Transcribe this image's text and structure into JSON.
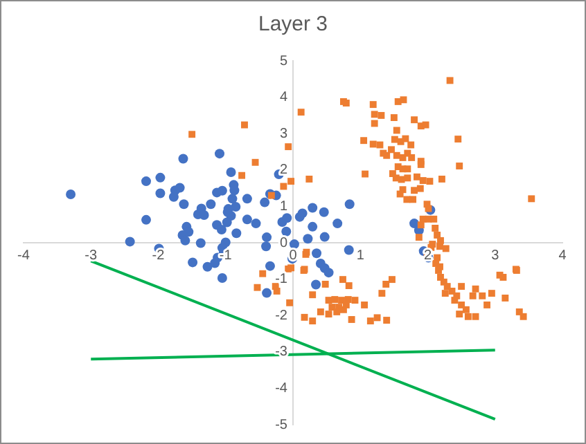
{
  "chart_data": {
    "type": "scatter",
    "title": "Layer 3",
    "xlim": [
      -4,
      4
    ],
    "xticks": [
      -4,
      -3,
      -2,
      -1,
      0,
      1,
      2,
      3,
      4
    ],
    "ylim": [
      -5,
      5
    ],
    "yticks": [
      -5,
      -4,
      -3,
      -2,
      -1,
      0,
      1,
      2,
      3,
      4,
      5
    ],
    "series": [
      {
        "type": "scatter",
        "marker": "circle",
        "color": "#4472c4",
        "x": [
          -3.3,
          -2.18,
          -1.97,
          -1.97,
          -2.18,
          -2.42,
          -1.99,
          -1.63,
          -1.75,
          -1.68,
          -1.77,
          -1.62,
          -1.41,
          -1.36,
          -1.32,
          -1.22,
          -1.58,
          -1.55,
          -1.64,
          -1.6,
          -1.37,
          -1.09,
          -0.92,
          -1.13,
          -1.05,
          -0.88,
          -0.87,
          -0.9,
          -0.85,
          -0.97,
          -0.92,
          -0.98,
          -0.96,
          -1.13,
          -1.06,
          -0.84,
          -1.0,
          -1.05,
          -1.12,
          -1.16,
          -1.03,
          -1.49,
          -1.27,
          -0.68,
          -0.55,
          -0.68,
          -0.42,
          -0.34,
          -0.21,
          -0.25,
          -0.16,
          -0.09,
          -0.1,
          -0.39,
          -0.4,
          -0.34,
          0.02,
          -0.01,
          0.1,
          0.14,
          -1.05,
          -0.39,
          0.29,
          0.46,
          0.29,
          0.22,
          0.47,
          0.66,
          0.84,
          0.83,
          0.35,
          0.41,
          0.47,
          0.53,
          0.34,
          1.8,
          1.87,
          2.04,
          1.94,
          2.01
        ],
        "values": [
          1.33,
          1.69,
          1.79,
          1.36,
          0.63,
          0.03,
          -0.16,
          2.31,
          1.44,
          1.51,
          1.26,
          1.06,
          0.78,
          0.94,
          0.76,
          1.06,
          0.44,
          0.3,
          0.21,
          0.06,
          -0.01,
          2.45,
          1.94,
          1.38,
          1.43,
          1.59,
          1.44,
          1.21,
          0.99,
          0.84,
          0.74,
          0.56,
          0.93,
          0.49,
          0.36,
          0.26,
          0.01,
          -0.14,
          -0.41,
          -0.56,
          -0.29,
          -0.54,
          -0.66,
          1.21,
          0.53,
          0.64,
          1.11,
          1.34,
          1.88,
          1.3,
          0.57,
          0.68,
          0.31,
          0.15,
          -0.1,
          -0.64,
          -0.04,
          -0.44,
          0.71,
          0.81,
          -0.97,
          -1.38,
          0.96,
          0.84,
          0.44,
          0.11,
          0.16,
          0.53,
          1.06,
          -0.2,
          -0.29,
          -0.57,
          -0.7,
          -0.82,
          -1.15,
          0.53,
          0.34,
          0.9,
          -0.23,
          -0.41
        ]
      },
      {
        "type": "scatter",
        "marker": "square",
        "color": "#ed7d31",
        "x": [
          -1.5,
          -0.72,
          -0.56,
          -0.76,
          -0.32,
          -0.14,
          -0.03,
          -0.07,
          0.12,
          0.24,
          0.75,
          0.79,
          1.05,
          1.07,
          1.19,
          1.21,
          1.31,
          1.21,
          1.5,
          1.56,
          1.64,
          1.8,
          1.9,
          1.97,
          2.33,
          2.45,
          2.47,
          3.54,
          1.19,
          1.29,
          1.34,
          1.39,
          1.46,
          1.54,
          1.51,
          1.6,
          1.67,
          1.75,
          1.7,
          1.54,
          1.63,
          1.76,
          1.9,
          1.9,
          1.56,
          1.63,
          1.7,
          1.48,
          1.53,
          1.61,
          1.7,
          1.84,
          1.93,
          1.89,
          1.8,
          1.63,
          1.59,
          1.69,
          1.78,
          2.03,
          2.21,
          1.99,
          2.01,
          1.93,
          2.01,
          2.09,
          1.9,
          2.11,
          2.14,
          1.87,
          2.07,
          2.18,
          2.27,
          2.14,
          2.18,
          0.2,
          0.17,
          -0.03,
          3.31,
          3.07,
          0.19,
          -0.07,
          0.16,
          -0.45,
          -0.53,
          -0.26,
          -0.24,
          -0.05,
          0.29,
          0.48,
          0.74,
          0.83,
          0.53,
          0.62,
          0.72,
          0.82,
          0.92,
          1.06,
          0.58,
          0.68,
          0.79,
          0.41,
          0.53,
          0.65,
          0.75,
          0.17,
          0.29,
          0.87,
          1.15,
          1.25,
          1.39,
          1.32,
          1.38,
          1.47,
          2.19,
          2.05,
          1.99,
          2.12,
          2.16,
          2.19,
          2.24,
          2.29,
          2.26,
          2.36,
          2.43,
          2.5,
          2.4,
          2.5,
          2.57,
          2.47,
          2.6,
          2.71,
          2.71,
          2.67,
          2.81,
          2.88,
          2.95,
          3.12,
          3.32,
          3.15,
          3.36,
          3.42
        ],
        "values": [
          2.98,
          3.24,
          2.21,
          1.85,
          1.3,
          1.55,
          1.69,
          2.64,
          3.59,
          1.75,
          3.88,
          3.84,
          2.81,
          1.89,
          3.8,
          3.53,
          3.5,
          3.28,
          3.44,
          3.88,
          3.93,
          3.38,
          3.21,
          3.24,
          4.46,
          2.85,
          2.11,
          1.21,
          2.71,
          2.69,
          2.46,
          2.4,
          2.56,
          3.09,
          2.84,
          2.78,
          2.86,
          2.69,
          2.46,
          2.4,
          2.34,
          2.34,
          2.24,
          2.15,
          2.09,
          2.03,
          2.03,
          1.9,
          1.78,
          1.74,
          1.78,
          1.81,
          1.71,
          1.49,
          1.44,
          1.46,
          1.34,
          1.19,
          1.19,
          1.69,
          1.75,
          1.06,
          0.94,
          0.65,
          0.65,
          0.65,
          0.49,
          0.4,
          0.21,
          0.15,
          -0.04,
          -0.1,
          -0.16,
          -0.41,
          -0.66,
          -0.26,
          -0.73,
          -0.69,
          -0.73,
          -0.89,
          -0.32,
          -0.72,
          -0.76,
          -0.85,
          -1.23,
          -1.2,
          -1.33,
          -1.65,
          -1.43,
          -1.14,
          -1.01,
          -1.18,
          -1.58,
          -1.56,
          -1.58,
          -1.56,
          -1.58,
          -1.71,
          -1.77,
          -1.77,
          -1.71,
          -1.9,
          -1.96,
          -1.9,
          -1.84,
          -2.05,
          -2.15,
          -2.11,
          -2.15,
          -2.06,
          -2.13,
          -1.39,
          -1.14,
          -1.01,
          0.06,
          -0.13,
          -0.38,
          -0.57,
          -0.76,
          -0.95,
          -1.08,
          -1.2,
          -1.39,
          -1.33,
          -1.46,
          -1.2,
          -1.58,
          -1.71,
          -1.84,
          -1.96,
          -2.03,
          -2.03,
          -1.27,
          -1.46,
          -1.46,
          -1.71,
          -1.39,
          -0.95,
          -0.76,
          -1.52,
          -1.9,
          -2.03
        ]
      },
      {
        "type": "line",
        "marker": "none",
        "color": "#00b050",
        "x": [
          -3,
          3
        ],
        "values": [
          -0.5,
          -4.85
        ]
      },
      {
        "type": "line",
        "marker": "none",
        "color": "#00b050",
        "x": [
          -3,
          3
        ],
        "values": [
          -3.2,
          -2.95
        ]
      }
    ]
  }
}
